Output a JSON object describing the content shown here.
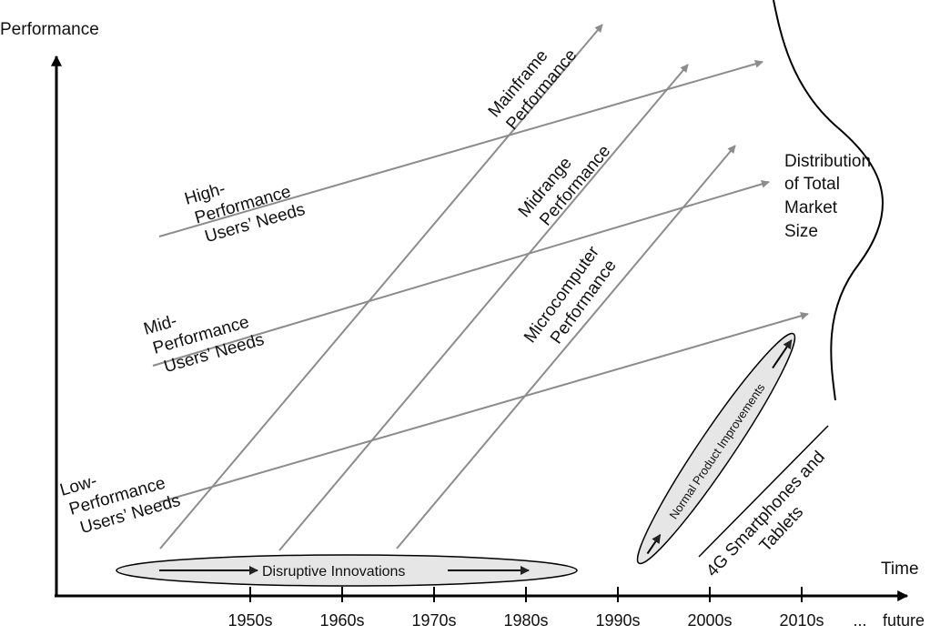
{
  "diagram": {
    "y_axis_label": "Performance",
    "x_axis_label": "Time",
    "x_ticks": [
      "1950s",
      "1960s",
      "1970s",
      "1980s",
      "1990s",
      "2000s",
      "2010s",
      "...",
      "future"
    ],
    "needs_lines": [
      {
        "lines": [
          "High-",
          "Performance",
          "Users’ Needs"
        ]
      },
      {
        "lines": [
          "Mid-",
          "Performance",
          "Users’ Needs"
        ]
      },
      {
        "lines": [
          "Low-",
          "Performance",
          "Users’ Needs"
        ]
      }
    ],
    "technology_lines": [
      {
        "lines": [
          "Mainframe",
          "Performance"
        ]
      },
      {
        "lines": [
          "Midrange",
          "Performance"
        ]
      },
      {
        "lines": [
          "Microcomputer",
          "Performance"
        ]
      }
    ],
    "distribution_label": [
      "Distribution",
      "of Total",
      "Market",
      "Size"
    ],
    "disruptive_label": "Disruptive Innovations",
    "normal_improvements_label": "Normal Product Improvements",
    "smartphones_label": [
      "4G Smartphones and",
      "Tablets"
    ],
    "colors": {
      "axis": "#000000",
      "trend_line": "#8c8c8c",
      "ellipse_fill": "#e6e6e6",
      "text": "#111111"
    }
  }
}
